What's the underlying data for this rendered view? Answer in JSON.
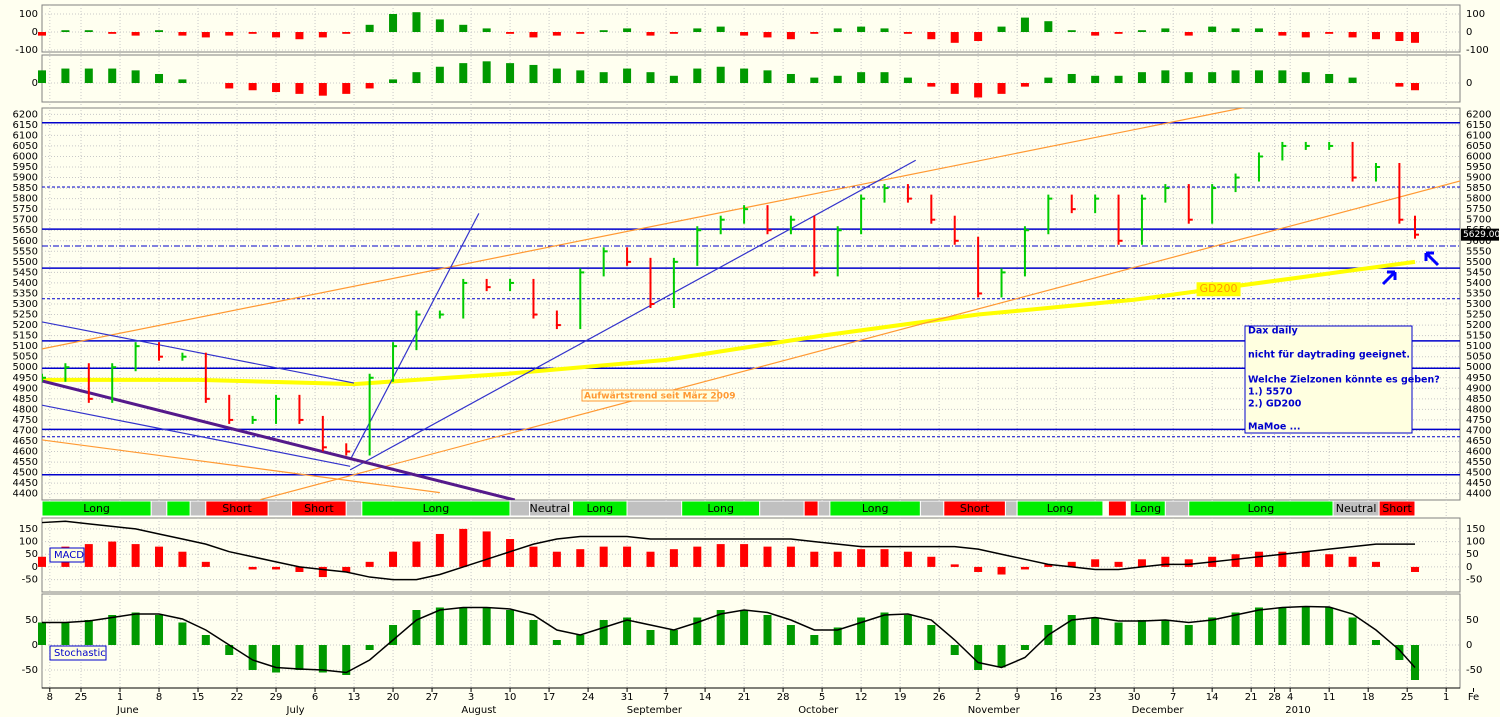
{
  "chart_data": {
    "type": "ohlc",
    "xlim": [
      0,
      186
    ],
    "x": [
      0,
      3,
      6,
      9,
      12,
      15,
      18,
      21,
      24,
      27,
      30,
      33,
      36,
      39,
      42,
      45,
      48,
      51,
      54,
      57,
      60,
      63,
      66,
      69,
      72,
      75,
      78,
      81,
      84,
      87,
      90,
      93,
      96,
      99,
      102,
      105,
      108,
      111,
      114,
      117,
      120,
      123,
      126,
      129,
      132,
      135,
      138,
      141,
      144,
      147,
      150,
      153,
      156,
      159,
      162,
      165,
      168,
      171,
      174,
      176
    ],
    "xticks": [
      {
        "value": 1,
        "label": "8"
      },
      {
        "value": 5,
        "label": "25"
      },
      {
        "value": 10,
        "label": "1"
      },
      {
        "value": 15,
        "label": "8"
      },
      {
        "value": 20,
        "label": "15"
      },
      {
        "value": 25,
        "label": "22"
      },
      {
        "value": 30,
        "label": "29"
      },
      {
        "value": 35,
        "label": "6"
      },
      {
        "value": 40,
        "label": "13"
      },
      {
        "value": 45,
        "label": "20"
      },
      {
        "value": 50,
        "label": "27"
      },
      {
        "value": 55,
        "label": "3"
      },
      {
        "value": 60,
        "label": "10"
      },
      {
        "value": 65,
        "label": "17"
      },
      {
        "value": 70,
        "label": "24"
      },
      {
        "value": 75,
        "label": "31"
      },
      {
        "value": 80,
        "label": "7"
      },
      {
        "value": 85,
        "label": "14"
      },
      {
        "value": 90,
        "label": "21"
      },
      {
        "value": 95,
        "label": "28"
      },
      {
        "value": 100,
        "label": "5"
      },
      {
        "value": 105,
        "label": "12"
      },
      {
        "value": 110,
        "label": "19"
      },
      {
        "value": 115,
        "label": "26"
      },
      {
        "value": 120,
        "label": "2"
      },
      {
        "value": 125,
        "label": "9"
      },
      {
        "value": 130,
        "label": "16"
      },
      {
        "value": 135,
        "label": "23"
      },
      {
        "value": 140,
        "label": "30"
      },
      {
        "value": 145,
        "label": "7"
      },
      {
        "value": 150,
        "label": "14"
      },
      {
        "value": 155,
        "label": "21"
      },
      {
        "value": 158,
        "label": "28"
      },
      {
        "value": 160,
        "label": "4"
      },
      {
        "value": 165,
        "label": "11"
      },
      {
        "value": 170,
        "label": "18"
      },
      {
        "value": 175,
        "label": "25"
      },
      {
        "value": 180,
        "label": "1"
      },
      {
        "value": 183.5,
        "label": "Fe"
      }
    ],
    "months": [
      {
        "value": 11,
        "label": "June"
      },
      {
        "value": 32.5,
        "label": "July"
      },
      {
        "value": 56,
        "label": "August"
      },
      {
        "value": 78.5,
        "label": "September"
      },
      {
        "value": 99.5,
        "label": "October"
      },
      {
        "value": 122,
        "label": "November"
      },
      {
        "value": 143,
        "label": "December"
      },
      {
        "value": 161,
        "label": "2010"
      }
    ],
    "grid": true,
    "price": {
      "values": [
        4950,
        5000,
        4850,
        5000,
        5100,
        5050,
        5050,
        4850,
        4750,
        4750,
        4850,
        4750,
        4620,
        4600,
        4950,
        5100,
        5250,
        5250,
        5400,
        5380,
        5400,
        5250,
        5200,
        5450,
        5550,
        5500,
        5300,
        5500,
        5650,
        5700,
        5750,
        5650,
        5700,
        5450,
        5650,
        5800,
        5850,
        5800,
        5700,
        5600,
        5350,
        5450,
        5650,
        5800,
        5750,
        5800,
        5600,
        5800,
        5850,
        5700,
        5850,
        5900,
        6000,
        6050,
        6050,
        6050,
        5900,
        5950,
        5700,
        5629
      ],
      "up_color": "#00cc00",
      "down_color": "#ff0000",
      "ylim": [
        4370,
        6230
      ],
      "yticks": [
        4400,
        4450,
        4500,
        4550,
        4600,
        4650,
        4700,
        4750,
        4800,
        4850,
        4900,
        4950,
        5000,
        5050,
        5100,
        5150,
        5200,
        5250,
        5300,
        5350,
        5400,
        5450,
        5500,
        5550,
        5600,
        5650,
        5700,
        5750,
        5800,
        5850,
        5900,
        5950,
        6000,
        6050,
        6100,
        6150,
        6200
      ],
      "last_label": "5629.00",
      "levels": [
        6160,
        5855,
        5655,
        5575,
        5470,
        5325,
        5125,
        4995,
        4705,
        4670,
        4490
      ],
      "level_styles": [
        "solid",
        "dashed",
        "solid",
        "dashdot",
        "solid",
        "dashed",
        "solid",
        "solid",
        "solid",
        "dashed",
        "solid"
      ],
      "level_color": "#0000cc"
    },
    "gd200": {
      "name": "GD200",
      "x": [
        0,
        20,
        40,
        60,
        80,
        100,
        120,
        140,
        160,
        176
      ],
      "values": [
        4940,
        4940,
        4920,
        4970,
        5035,
        5150,
        5250,
        5320,
        5420,
        5500
      ],
      "color": "#ffff00"
    },
    "trendlines": [
      {
        "points": [
          [
            0,
            5087
          ],
          [
            156.8,
            6252
          ]
        ],
        "color": "#ff9933"
      },
      {
        "points": [
          [
            28,
            4372
          ],
          [
            187,
            5935
          ]
        ],
        "color": "#ff9933"
      },
      {
        "points": [
          [
            0,
            4655
          ],
          [
            51,
            4405
          ]
        ],
        "color": "#ff9933"
      },
      {
        "points": [
          [
            0,
            5215
          ],
          [
            40,
            4925
          ]
        ],
        "color": "#3333cc"
      },
      {
        "points": [
          [
            0,
            4820
          ],
          [
            39.5,
            4530
          ]
        ],
        "color": "#3333cc"
      },
      {
        "points": [
          [
            39.5,
            4513
          ],
          [
            112,
            5982
          ]
        ],
        "color": "#3333cc"
      },
      {
        "points": [
          [
            39.5,
            4560
          ],
          [
            56,
            5730
          ]
        ],
        "color": "#3333cc"
      },
      {
        "points": [
          [
            0,
            4935
          ],
          [
            60.6,
            4370
          ]
        ],
        "color": "#551a8b"
      }
    ],
    "annotation": "Aufwärtstrend seit März 2009",
    "note_box": [
      "Dax daily",
      "nicht für daytrading geeignet.",
      "Welche Zielzonen könnte es geben?",
      "1.) 5570",
      "2.) GD200",
      "MaMoe ..."
    ],
    "signals": [
      {
        "start": 0,
        "end": 14,
        "label": "Long",
        "color": "#00ee00"
      },
      {
        "start": 14,
        "end": 16,
        "color": "#c0c0c0"
      },
      {
        "start": 16,
        "end": 19,
        "color": "#00ee00"
      },
      {
        "start": 19,
        "end": 21,
        "color": "#c0c0c0"
      },
      {
        "start": 21,
        "end": 29,
        "label": "Short",
        "color": "#ff0000"
      },
      {
        "start": 29,
        "end": 32,
        "color": "#c0c0c0"
      },
      {
        "start": 32,
        "end": 39,
        "label": "Short",
        "color": "#ff0000"
      },
      {
        "start": 39,
        "end": 41,
        "color": "#c0c0c0"
      },
      {
        "start": 41,
        "end": 60,
        "label": "Long",
        "color": "#00ee00"
      },
      {
        "start": 60,
        "end": 62.5,
        "color": "#c0c0c0"
      },
      {
        "start": 62.5,
        "end": 67.7,
        "label": "Neutral",
        "color": "#c0c0c0"
      },
      {
        "start": 68,
        "end": 75,
        "label": "Long",
        "color": "#00ee00"
      },
      {
        "start": 75,
        "end": 82,
        "color": "#c0c0c0"
      },
      {
        "start": 82,
        "end": 92,
        "label": "Long",
        "color": "#00ee00"
      },
      {
        "start": 92,
        "end": 97.7,
        "color": "#c0c0c0"
      },
      {
        "start": 97.7,
        "end": 99.5,
        "color": "#ff0000"
      },
      {
        "start": 99.5,
        "end": 101,
        "color": "#c0c0c0"
      },
      {
        "start": 101,
        "end": 112.6,
        "label": "Long",
        "color": "#00ee00"
      },
      {
        "start": 112.6,
        "end": 115.6,
        "color": "#c0c0c0"
      },
      {
        "start": 115.6,
        "end": 123.5,
        "label": "Short",
        "color": "#ff0000"
      },
      {
        "start": 123.5,
        "end": 125,
        "color": "#c0c0c0"
      },
      {
        "start": 125,
        "end": 136,
        "label": "Long",
        "color": "#00ee00"
      },
      {
        "start": 136.7,
        "end": 139,
        "color": "#ff0000"
      },
      {
        "start": 139.5,
        "end": 144,
        "label": "Long",
        "color": "#00ee00"
      },
      {
        "start": 144,
        "end": 147,
        "color": "#c0c0c0"
      },
      {
        "start": 147,
        "end": 165.5,
        "label": "Long",
        "color": "#00ee00"
      },
      {
        "start": 165.5,
        "end": 171.4,
        "label": "Neutral",
        "color": "#c0c0c0"
      },
      {
        "start": 171.4,
        "end": 176,
        "label": "Short",
        "color": "#ff0000"
      }
    ],
    "osc1": {
      "values": [
        -20,
        10,
        10,
        -10,
        -20,
        10,
        -20,
        -30,
        -20,
        -10,
        -30,
        -40,
        -30,
        -10,
        40,
        100,
        110,
        70,
        40,
        20,
        -10,
        -30,
        -20,
        -10,
        10,
        20,
        -20,
        -10,
        20,
        30,
        -20,
        -30,
        -40,
        -10,
        20,
        30,
        20,
        -10,
        -40,
        -60,
        -50,
        30,
        80,
        60,
        10,
        -20,
        -10,
        10,
        20,
        -20,
        30,
        20,
        20,
        -20,
        -30,
        -10,
        -30,
        -40,
        -50,
        -60
      ],
      "ylim": [
        -111,
        150
      ],
      "yticks": [
        100,
        0,
        -100
      ],
      "up_color": "#009900",
      "down_color": "#ff0000"
    },
    "osc2": {
      "values": [
        70,
        80,
        80,
        80,
        70,
        50,
        20,
        0,
        -30,
        -40,
        -50,
        -60,
        -70,
        -60,
        -30,
        20,
        60,
        90,
        110,
        120,
        110,
        100,
        80,
        70,
        60,
        80,
        60,
        40,
        80,
        90,
        80,
        70,
        50,
        30,
        40,
        60,
        60,
        30,
        -20,
        -60,
        -80,
        -60,
        -20,
        30,
        50,
        40,
        40,
        60,
        70,
        60,
        60,
        70,
        70,
        70,
        60,
        50,
        30,
        0,
        -20,
        -40
      ],
      "ylim": [
        -105,
        155
      ],
      "yticks": [
        0
      ],
      "up_color": "#009900",
      "down_color": "#ff0000"
    },
    "macd": {
      "name": "MACD",
      "hist": [
        40,
        80,
        90,
        100,
        90,
        80,
        60,
        20,
        0,
        -10,
        -10,
        -20,
        -40,
        -20,
        20,
        60,
        100,
        130,
        150,
        140,
        110,
        80,
        60,
        70,
        80,
        80,
        60,
        70,
        80,
        90,
        90,
        80,
        80,
        60,
        60,
        70,
        70,
        60,
        40,
        10,
        -20,
        -30,
        -10,
        10,
        20,
        30,
        20,
        30,
        40,
        30,
        40,
        50,
        60,
        60,
        60,
        50,
        40,
        20,
        0,
        -20
      ],
      "line": [
        175,
        180,
        170,
        160,
        150,
        130,
        110,
        90,
        60,
        40,
        20,
        0,
        -10,
        -20,
        -40,
        -50,
        -50,
        -30,
        0,
        30,
        60,
        90,
        110,
        120,
        120,
        120,
        110,
        110,
        110,
        110,
        110,
        110,
        110,
        100,
        90,
        80,
        80,
        80,
        80,
        80,
        70,
        50,
        30,
        10,
        0,
        -10,
        -10,
        0,
        10,
        10,
        20,
        30,
        40,
        50,
        60,
        70,
        80,
        90,
        90,
        90
      ],
      "ylim": [
        -99,
        193
      ],
      "yticks": [
        150,
        100,
        50,
        0,
        -50
      ],
      "color": "#ff0000"
    },
    "stochastic": {
      "name": "Stochastic",
      "hist": [
        45,
        45,
        50,
        60,
        65,
        60,
        45,
        20,
        -20,
        -50,
        -55,
        -50,
        -55,
        -60,
        -10,
        40,
        70,
        75,
        75,
        75,
        70,
        50,
        10,
        20,
        50,
        55,
        30,
        30,
        55,
        70,
        70,
        60,
        40,
        20,
        35,
        55,
        65,
        60,
        40,
        -20,
        -50,
        -45,
        -10,
        40,
        60,
        55,
        45,
        50,
        50,
        40,
        55,
        65,
        75,
        75,
        78,
        75,
        55,
        10,
        -30,
        -70
      ],
      "line": [
        45,
        45,
        48,
        55,
        62,
        62,
        52,
        30,
        0,
        -30,
        -45,
        -48,
        -50,
        -55,
        -30,
        10,
        50,
        70,
        75,
        75,
        72,
        60,
        30,
        20,
        35,
        50,
        40,
        30,
        45,
        62,
        70,
        65,
        50,
        30,
        30,
        45,
        60,
        62,
        50,
        10,
        -35,
        -45,
        -25,
        20,
        50,
        55,
        48,
        48,
        50,
        45,
        50,
        60,
        70,
        75,
        77,
        76,
        62,
        30,
        -10,
        -45
      ],
      "ylim": [
        -86,
        102
      ],
      "yticks": [
        50,
        0,
        -50
      ],
      "color": "#009900"
    }
  }
}
